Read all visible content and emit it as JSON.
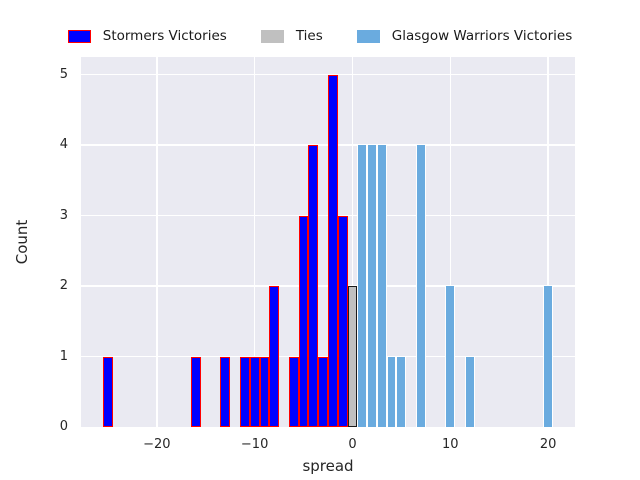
{
  "chart_data": {
    "type": "bar",
    "subtype": "histogram",
    "title": "",
    "xlabel": "spread",
    "ylabel": "Count",
    "xlim": [
      -27.75,
      22.75
    ],
    "ylim": [
      0,
      5.25
    ],
    "grid": true,
    "background_color": "#eaeaf2",
    "gridline_color": "#ffffff",
    "text_color": "#262626",
    "legend_position": "top-center",
    "xticks": [
      {
        "value": -20,
        "label": "−20"
      },
      {
        "value": -10,
        "label": "−10"
      },
      {
        "value": 0,
        "label": "0"
      },
      {
        "value": 10,
        "label": "10"
      },
      {
        "value": 20,
        "label": "20"
      }
    ],
    "yticks": [
      {
        "value": 0,
        "label": "0"
      },
      {
        "value": 1,
        "label": "1"
      },
      {
        "value": 2,
        "label": "2"
      },
      {
        "value": 3,
        "label": "3"
      },
      {
        "value": 4,
        "label": "4"
      },
      {
        "value": 5,
        "label": "5"
      }
    ],
    "series": [
      {
        "key": "stormers",
        "name": "Stormers Victories",
        "color": "#0000ff",
        "edge_color": "#ff0000",
        "bin_width": 1,
        "bars": [
          {
            "x": -25,
            "count": 1
          },
          {
            "x": -16,
            "count": 1
          },
          {
            "x": -13,
            "count": 1
          },
          {
            "x": -11,
            "count": 1
          },
          {
            "x": -10,
            "count": 1
          },
          {
            "x": -9,
            "count": 1
          },
          {
            "x": -8,
            "count": 2
          },
          {
            "x": -6,
            "count": 1
          },
          {
            "x": -5,
            "count": 3
          },
          {
            "x": -4,
            "count": 4
          },
          {
            "x": -3,
            "count": 1
          },
          {
            "x": -2,
            "count": 5
          },
          {
            "x": -1,
            "count": 3
          }
        ]
      },
      {
        "key": "ties",
        "name": "Ties",
        "color": "#c0c0c0",
        "edge_color": "#1a1a1a",
        "bin_width": 1,
        "bars": [
          {
            "x": 0,
            "count": 2
          }
        ]
      },
      {
        "key": "glasgow",
        "name": "Glasgow Warriors Victories",
        "color": "#6aabdf",
        "edge_color": "#ffffff",
        "bin_width": 1,
        "bars": [
          {
            "x": 1,
            "count": 4
          },
          {
            "x": 2,
            "count": 4
          },
          {
            "x": 3,
            "count": 4
          },
          {
            "x": 4,
            "count": 1
          },
          {
            "x": 5,
            "count": 1
          },
          {
            "x": 7,
            "count": 4
          },
          {
            "x": 10,
            "count": 2
          },
          {
            "x": 12,
            "count": 1
          },
          {
            "x": 20,
            "count": 2
          }
        ]
      }
    ]
  }
}
